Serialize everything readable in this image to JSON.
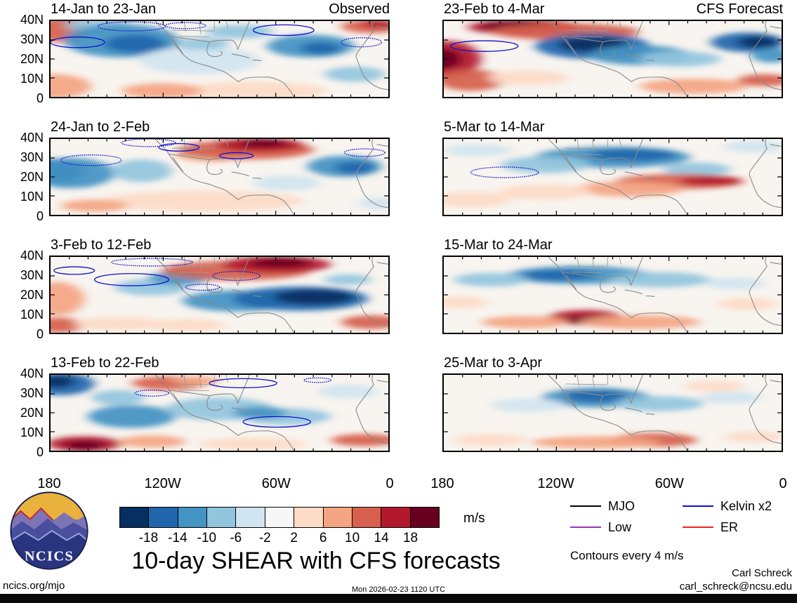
{
  "title": "10-day SHEAR with CFS forecasts",
  "logo": {
    "text": "NCICS"
  },
  "legend": {
    "items": [
      {
        "label": "MJO",
        "color": "#000000"
      },
      {
        "label": "Kelvin x2",
        "color": "#1111cc"
      },
      {
        "label": "Low",
        "color": "#9933bb"
      },
      {
        "label": "ER",
        "color": "#ee2222"
      }
    ],
    "note": "Contours every 4 m/s"
  },
  "meta": {
    "site": "ncics.org/mjo",
    "timestamp": "Mon 2026-02-23 1120 UTC",
    "author": "Carl Schreck",
    "email": "carl_schreck@ncsu.edu"
  },
  "chart_data": {
    "type": "heatmap",
    "subtype": "filled-contour-map",
    "variable": "SHEAR anomaly",
    "units": "m/s",
    "columns": {
      "left_label": "Observed",
      "right_label": "CFS Forecast"
    },
    "x_axis": {
      "ticks": [
        "180",
        "120W",
        "60W",
        "0"
      ]
    },
    "y_axis": {
      "ticks": [
        "40N",
        "30N",
        "20N",
        "10N",
        "0"
      ]
    },
    "colorbar": {
      "levels": [
        -18,
        -14,
        -10,
        -6,
        -2,
        2,
        6,
        10,
        14,
        18
      ],
      "colors": [
        "#053061",
        "#2166ac",
        "#4393c3",
        "#92c5de",
        "#d1e5f0",
        "#f7f7f7",
        "#fddbc7",
        "#f4a582",
        "#d6604d",
        "#b2182b",
        "#67001f"
      ],
      "units": "m/s"
    },
    "panels": [
      {
        "title": "14-Jan to 23-Jan",
        "column": "observed",
        "features": [
          {
            "x": 3,
            "y": 12,
            "rx": 9,
            "ry": 16,
            "v": 12
          },
          {
            "x": 1,
            "y": 86,
            "rx": 11,
            "ry": 16,
            "v": 8
          },
          {
            "x": 14,
            "y": 6,
            "rx": 10,
            "ry": 8,
            "v": -8
          },
          {
            "x": 21,
            "y": 26,
            "rx": 17,
            "ry": 22,
            "v": -12
          },
          {
            "x": 25,
            "y": 30,
            "rx": 9,
            "ry": 12,
            "v": -16
          },
          {
            "x": 44,
            "y": 52,
            "rx": 18,
            "ry": 18,
            "v": -4
          },
          {
            "x": 56,
            "y": 14,
            "rx": 10,
            "ry": 9,
            "v": -8
          },
          {
            "x": 45,
            "y": 30,
            "rx": 8,
            "ry": 8,
            "v": -8
          },
          {
            "x": 77,
            "y": 33,
            "rx": 13,
            "ry": 15,
            "v": -12
          },
          {
            "x": 80,
            "y": 36,
            "rx": 6,
            "ry": 8,
            "v": -16
          },
          {
            "x": 95,
            "y": 7,
            "rx": 9,
            "ry": 9,
            "v": 12
          },
          {
            "x": 97,
            "y": 4,
            "rx": 5,
            "ry": 5,
            "v": 16
          },
          {
            "x": 60,
            "y": 92,
            "rx": 22,
            "ry": 12,
            "v": 4
          },
          {
            "x": 33,
            "y": 92,
            "rx": 12,
            "ry": 10,
            "v": 8
          },
          {
            "x": 90,
            "y": 70,
            "rx": 9,
            "ry": 10,
            "v": -8
          }
        ],
        "contours": [
          {
            "x": 69,
            "y": 12,
            "rx": 9,
            "ry": 7,
            "s": "solid"
          },
          {
            "x": 24,
            "y": 7,
            "rx": 10,
            "ry": 6,
            "s": "dashed"
          },
          {
            "x": 8,
            "y": 28,
            "rx": 8,
            "ry": 7,
            "s": "solid"
          },
          {
            "x": 92,
            "y": 28,
            "rx": 6,
            "ry": 6,
            "s": "dashed"
          },
          {
            "x": 40,
            "y": 6,
            "rx": 6,
            "ry": 4,
            "s": "dashed"
          }
        ]
      },
      {
        "title": "24-Jan to 2-Feb",
        "column": "observed",
        "features": [
          {
            "x": 1,
            "y": 42,
            "rx": 9,
            "ry": 16,
            "v": -16
          },
          {
            "x": 6,
            "y": 45,
            "rx": 13,
            "ry": 20,
            "v": -12
          },
          {
            "x": 27,
            "y": 42,
            "rx": 9,
            "ry": 15,
            "v": -8
          },
          {
            "x": 47,
            "y": 20,
            "rx": 10,
            "ry": 10,
            "v": 8
          },
          {
            "x": 58,
            "y": 14,
            "rx": 20,
            "ry": 13,
            "v": 12
          },
          {
            "x": 62,
            "y": 8,
            "rx": 13,
            "ry": 9,
            "v": 16
          },
          {
            "x": 63,
            "y": 6,
            "rx": 7,
            "ry": 5,
            "v": 20
          },
          {
            "x": 87,
            "y": 36,
            "rx": 11,
            "ry": 14,
            "v": -12
          },
          {
            "x": 90,
            "y": 38,
            "rx": 6,
            "ry": 8,
            "v": -16
          },
          {
            "x": 45,
            "y": 82,
            "rx": 30,
            "ry": 14,
            "v": 4
          },
          {
            "x": 13,
            "y": 88,
            "rx": 10,
            "ry": 8,
            "v": 8
          },
          {
            "x": 70,
            "y": 58,
            "rx": 10,
            "ry": 10,
            "v": -4
          },
          {
            "x": 97,
            "y": 85,
            "rx": 6,
            "ry": 8,
            "v": -4
          }
        ],
        "contours": [
          {
            "x": 12,
            "y": 28,
            "rx": 9,
            "ry": 7,
            "s": "dashed"
          },
          {
            "x": 29,
            "y": 5,
            "rx": 8,
            "ry": 5,
            "s": "dashed"
          },
          {
            "x": 38,
            "y": 11,
            "rx": 6,
            "ry": 5,
            "s": "solid"
          },
          {
            "x": 93,
            "y": 18,
            "rx": 6,
            "ry": 5,
            "s": "dashed"
          },
          {
            "x": 55,
            "y": 22,
            "rx": 5,
            "ry": 4,
            "s": "solid"
          }
        ]
      },
      {
        "title": "3-Feb to 12-Feb",
        "column": "observed",
        "features": [
          {
            "x": 2,
            "y": 55,
            "rx": 8,
            "ry": 22,
            "v": 8
          },
          {
            "x": 2,
            "y": 90,
            "rx": 8,
            "ry": 10,
            "v": 12
          },
          {
            "x": 20,
            "y": 88,
            "rx": 13,
            "ry": 9,
            "v": 4
          },
          {
            "x": 30,
            "y": 40,
            "rx": 11,
            "ry": 11,
            "v": -8
          },
          {
            "x": 38,
            "y": 28,
            "rx": 9,
            "ry": 9,
            "v": -12
          },
          {
            "x": 55,
            "y": 18,
            "rx": 22,
            "ry": 13,
            "v": 12
          },
          {
            "x": 67,
            "y": 10,
            "rx": 16,
            "ry": 11,
            "v": 16
          },
          {
            "x": 68,
            "y": 8,
            "rx": 9,
            "ry": 6,
            "v": 20
          },
          {
            "x": 55,
            "y": 58,
            "rx": 16,
            "ry": 14,
            "v": -12
          },
          {
            "x": 74,
            "y": 55,
            "rx": 20,
            "ry": 16,
            "v": -16
          },
          {
            "x": 78,
            "y": 53,
            "rx": 12,
            "ry": 10,
            "v": -20
          },
          {
            "x": 95,
            "y": 86,
            "rx": 9,
            "ry": 9,
            "v": 12
          },
          {
            "x": 88,
            "y": 30,
            "rx": 7,
            "ry": 7,
            "v": -8
          },
          {
            "x": 40,
            "y": 90,
            "rx": 12,
            "ry": 8,
            "v": 4
          }
        ],
        "contours": [
          {
            "x": 24,
            "y": 30,
            "rx": 11,
            "ry": 8,
            "s": "solid"
          },
          {
            "x": 30,
            "y": 7,
            "rx": 12,
            "ry": 5,
            "s": "dashed"
          },
          {
            "x": 55,
            "y": 25,
            "rx": 7,
            "ry": 6,
            "s": "dashed"
          },
          {
            "x": 7,
            "y": 18,
            "rx": 6,
            "ry": 5,
            "s": "solid"
          },
          {
            "x": 45,
            "y": 40,
            "rx": 5,
            "ry": 4,
            "s": "dashed"
          }
        ]
      },
      {
        "title": "13-Feb to 22-Feb",
        "column": "observed",
        "features": [
          {
            "x": 3,
            "y": 12,
            "rx": 10,
            "ry": 15,
            "v": -16
          },
          {
            "x": 2,
            "y": 9,
            "rx": 5,
            "ry": 8,
            "v": -20
          },
          {
            "x": 10,
            "y": 91,
            "rx": 11,
            "ry": 10,
            "v": 16
          },
          {
            "x": 10,
            "y": 93,
            "rx": 6,
            "ry": 6,
            "v": 20
          },
          {
            "x": 24,
            "y": 55,
            "rx": 13,
            "ry": 15,
            "v": -12
          },
          {
            "x": 20,
            "y": 30,
            "rx": 8,
            "ry": 10,
            "v": -8
          },
          {
            "x": 35,
            "y": 11,
            "rx": 11,
            "ry": 9,
            "v": 12
          },
          {
            "x": 43,
            "y": 8,
            "rx": 7,
            "ry": 6,
            "v": 8
          },
          {
            "x": 50,
            "y": 45,
            "rx": 16,
            "ry": 15,
            "v": -8
          },
          {
            "x": 70,
            "y": 55,
            "rx": 13,
            "ry": 11,
            "v": -8
          },
          {
            "x": 62,
            "y": 50,
            "rx": 8,
            "ry": 8,
            "v": -12
          },
          {
            "x": 88,
            "y": 22,
            "rx": 9,
            "ry": 9,
            "v": -4
          },
          {
            "x": 93,
            "y": 86,
            "rx": 10,
            "ry": 8,
            "v": 12
          },
          {
            "x": 60,
            "y": 91,
            "rx": 16,
            "ry": 8,
            "v": 4
          },
          {
            "x": 30,
            "y": 88,
            "rx": 10,
            "ry": 8,
            "v": 8
          }
        ],
        "contours": [
          {
            "x": 57,
            "y": 11,
            "rx": 10,
            "ry": 6,
            "s": "solid"
          },
          {
            "x": 67,
            "y": 62,
            "rx": 10,
            "ry": 7,
            "s": "solid"
          },
          {
            "x": 30,
            "y": 24,
            "rx": 5,
            "ry": 4,
            "s": "dashed"
          },
          {
            "x": 79,
            "y": 7,
            "rx": 4,
            "ry": 3,
            "s": "dashed"
          }
        ]
      },
      {
        "title": "23-Feb to 4-Mar",
        "column": "forecast",
        "features": [
          {
            "x": 24,
            "y": 8,
            "rx": 17,
            "ry": 10,
            "v": 16
          },
          {
            "x": 21,
            "y": 6,
            "rx": 10,
            "ry": 6,
            "v": 20
          },
          {
            "x": 36,
            "y": 14,
            "rx": 22,
            "ry": 11,
            "v": 12
          },
          {
            "x": 1,
            "y": 50,
            "rx": 10,
            "ry": 24,
            "v": 16
          },
          {
            "x": 0,
            "y": 50,
            "rx": 5,
            "ry": 13,
            "v": 20
          },
          {
            "x": 8,
            "y": 78,
            "rx": 10,
            "ry": 14,
            "v": 12
          },
          {
            "x": 44,
            "y": 33,
            "rx": 17,
            "ry": 17,
            "v": -16
          },
          {
            "x": 44,
            "y": 31,
            "rx": 10,
            "ry": 10,
            "v": -20
          },
          {
            "x": 58,
            "y": 45,
            "rx": 15,
            "ry": 13,
            "v": -12
          },
          {
            "x": 70,
            "y": 50,
            "rx": 12,
            "ry": 10,
            "v": -8
          },
          {
            "x": 90,
            "y": 28,
            "rx": 11,
            "ry": 13,
            "v": -16
          },
          {
            "x": 93,
            "y": 28,
            "rx": 6,
            "ry": 8,
            "v": -20
          },
          {
            "x": 97,
            "y": 45,
            "rx": 6,
            "ry": 10,
            "v": -12
          },
          {
            "x": 74,
            "y": 86,
            "rx": 16,
            "ry": 10,
            "v": 8
          },
          {
            "x": 95,
            "y": 78,
            "rx": 8,
            "ry": 8,
            "v": 12
          },
          {
            "x": 25,
            "y": 75,
            "rx": 12,
            "ry": 10,
            "v": 4
          }
        ],
        "contours": [
          {
            "x": 12,
            "y": 33,
            "rx": 10,
            "ry": 7,
            "s": "solid"
          }
        ]
      },
      {
        "title": "5-Mar to 14-Mar",
        "column": "forecast",
        "features": [
          {
            "x": 50,
            "y": 24,
            "rx": 23,
            "ry": 14,
            "v": -12
          },
          {
            "x": 56,
            "y": 21,
            "rx": 13,
            "ry": 8,
            "v": -16
          },
          {
            "x": 30,
            "y": 34,
            "rx": 13,
            "ry": 11,
            "v": -8
          },
          {
            "x": 75,
            "y": 40,
            "rx": 10,
            "ry": 9,
            "v": -8
          },
          {
            "x": 70,
            "y": 56,
            "rx": 19,
            "ry": 10,
            "v": 12
          },
          {
            "x": 79,
            "y": 55,
            "rx": 9,
            "ry": 6,
            "v": 16
          },
          {
            "x": 55,
            "y": 66,
            "rx": 16,
            "ry": 10,
            "v": 8
          },
          {
            "x": 30,
            "y": 70,
            "rx": 14,
            "ry": 10,
            "v": 4
          },
          {
            "x": 8,
            "y": 80,
            "rx": 12,
            "ry": 10,
            "v": 4
          },
          {
            "x": 92,
            "y": 10,
            "rx": 9,
            "ry": 8,
            "v": -4
          },
          {
            "x": 10,
            "y": 15,
            "rx": 10,
            "ry": 8,
            "v": -4
          }
        ],
        "contours": [
          {
            "x": 18,
            "y": 44,
            "rx": 10,
            "ry": 7,
            "s": "dashed"
          }
        ]
      },
      {
        "title": "15-Mar to 24-Mar",
        "column": "forecast",
        "features": [
          {
            "x": 40,
            "y": 24,
            "rx": 21,
            "ry": 12,
            "v": -12
          },
          {
            "x": 34,
            "y": 24,
            "rx": 11,
            "ry": 7,
            "v": -16
          },
          {
            "x": 64,
            "y": 30,
            "rx": 15,
            "ry": 10,
            "v": -8
          },
          {
            "x": 14,
            "y": 30,
            "rx": 11,
            "ry": 9,
            "v": -8
          },
          {
            "x": 86,
            "y": 35,
            "rx": 9,
            "ry": 8,
            "v": -4
          },
          {
            "x": 42,
            "y": 80,
            "rx": 11,
            "ry": 10,
            "v": 16
          },
          {
            "x": 42,
            "y": 83,
            "rx": 6,
            "ry": 5,
            "v": 20
          },
          {
            "x": 58,
            "y": 86,
            "rx": 18,
            "ry": 9,
            "v": 8
          },
          {
            "x": 24,
            "y": 86,
            "rx": 13,
            "ry": 8,
            "v": 8
          },
          {
            "x": 90,
            "y": 62,
            "rx": 9,
            "ry": 8,
            "v": 4
          },
          {
            "x": 5,
            "y": 60,
            "rx": 8,
            "ry": 8,
            "v": 4
          }
        ],
        "contours": []
      },
      {
        "title": "25-Mar to 3-Apr",
        "column": "forecast",
        "features": [
          {
            "x": 45,
            "y": 30,
            "rx": 16,
            "ry": 13,
            "v": -12
          },
          {
            "x": 45,
            "y": 28,
            "rx": 9,
            "ry": 8,
            "v": -16
          },
          {
            "x": 64,
            "y": 38,
            "rx": 13,
            "ry": 10,
            "v": -8
          },
          {
            "x": 25,
            "y": 40,
            "rx": 11,
            "ry": 9,
            "v": -4
          },
          {
            "x": 85,
            "y": 30,
            "rx": 9,
            "ry": 8,
            "v": -4
          },
          {
            "x": 62,
            "y": 86,
            "rx": 13,
            "ry": 9,
            "v": 12
          },
          {
            "x": 45,
            "y": 89,
            "rx": 19,
            "ry": 8,
            "v": 8
          },
          {
            "x": 14,
            "y": 86,
            "rx": 11,
            "ry": 8,
            "v": 4
          },
          {
            "x": 92,
            "y": 82,
            "rx": 9,
            "ry": 7,
            "v": 4
          },
          {
            "x": 80,
            "y": 15,
            "rx": 9,
            "ry": 7,
            "v": 4
          }
        ],
        "contours": []
      }
    ]
  }
}
